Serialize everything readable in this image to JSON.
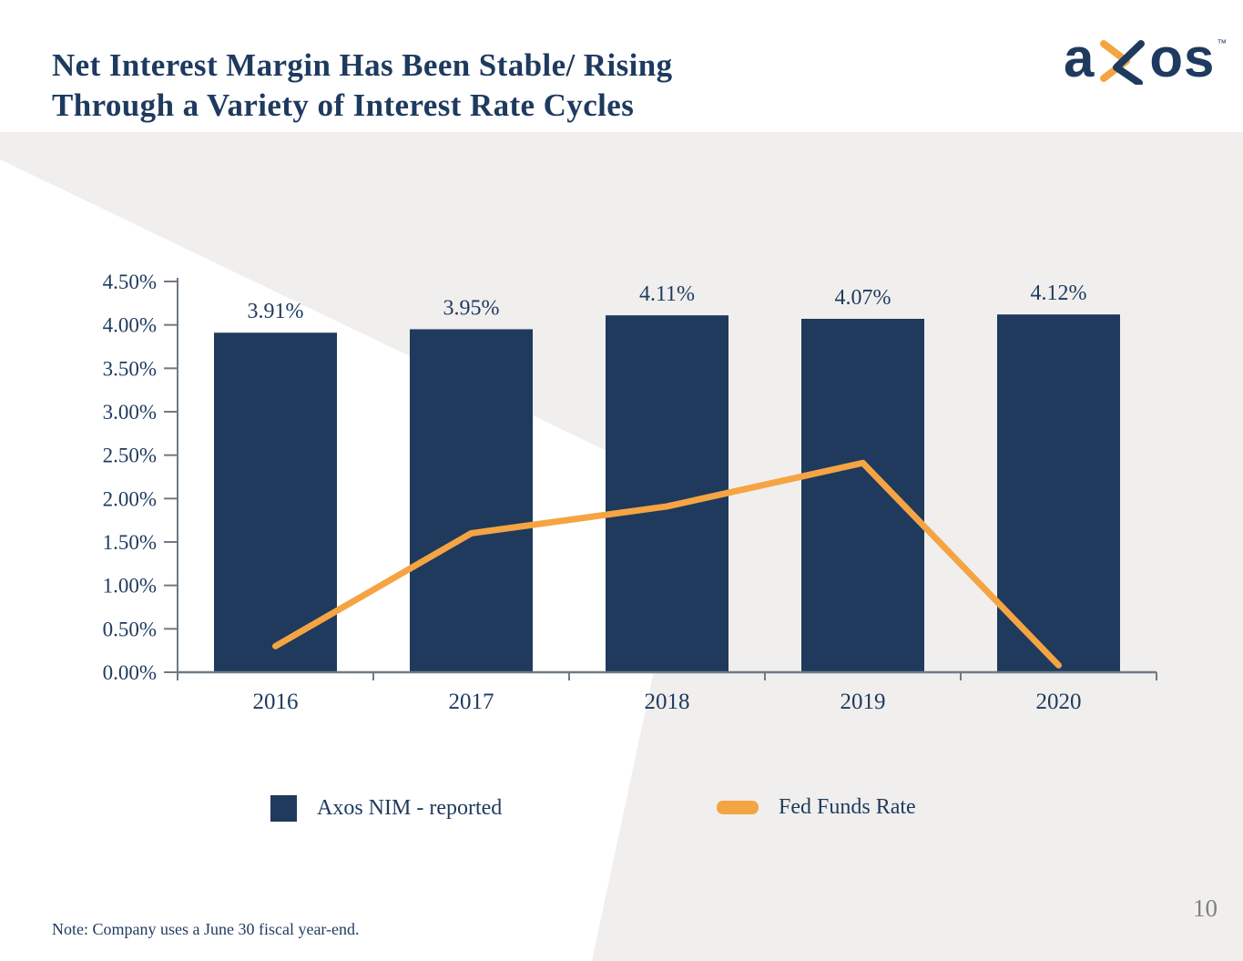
{
  "title": {
    "line1": "Net Interest Margin Has Been Stable/ Rising",
    "line2": "Through a Variety of Interest Rate Cycles"
  },
  "brand": {
    "a": "a",
    "o": "o",
    "s": "s",
    "trademark": "TM"
  },
  "chart_data": {
    "type": "bar",
    "title": "",
    "categories": [
      "2016",
      "2017",
      "2018",
      "2019",
      "2020"
    ],
    "series": [
      {
        "name": "Axos NIM - reported",
        "type": "bar",
        "values": [
          3.91,
          3.95,
          4.11,
          4.07,
          4.12
        ],
        "labels": [
          "3.91%",
          "3.95%",
          "4.11%",
          "4.07%",
          "4.12%"
        ],
        "color": "#1f3a5c"
      },
      {
        "name": "Fed Funds Rate",
        "type": "line",
        "values": [
          0.3,
          1.6,
          1.91,
          2.41,
          0.08
        ],
        "color": "#f5a443"
      }
    ],
    "y_axis": {
      "min": 0,
      "max": 4.5,
      "step": 0.5,
      "tick_labels": [
        "0.00%",
        "0.50%",
        "1.00%",
        "1.50%",
        "2.00%",
        "2.50%",
        "3.00%",
        "3.50%",
        "4.00%",
        "4.50%"
      ]
    },
    "grid": false,
    "legend_position": "bottom"
  },
  "legend": [
    {
      "label": "Axos NIM - reported",
      "color": "#1f3a5c",
      "marker": "square"
    },
    {
      "label": "Fed Funds Rate",
      "color": "#f5a443",
      "marker": "line"
    }
  ],
  "note": {
    "text": "Note: Company uses a June 30 fiscal year-end."
  },
  "page": {
    "number": "10"
  },
  "colors": {
    "navy": "#1e3a5f",
    "bar_navy": "#1f3a5c",
    "orange": "#f5a443",
    "band_grey": "#f0efed",
    "axis_grey": "#6e7a86",
    "page_grey": "#808080"
  }
}
